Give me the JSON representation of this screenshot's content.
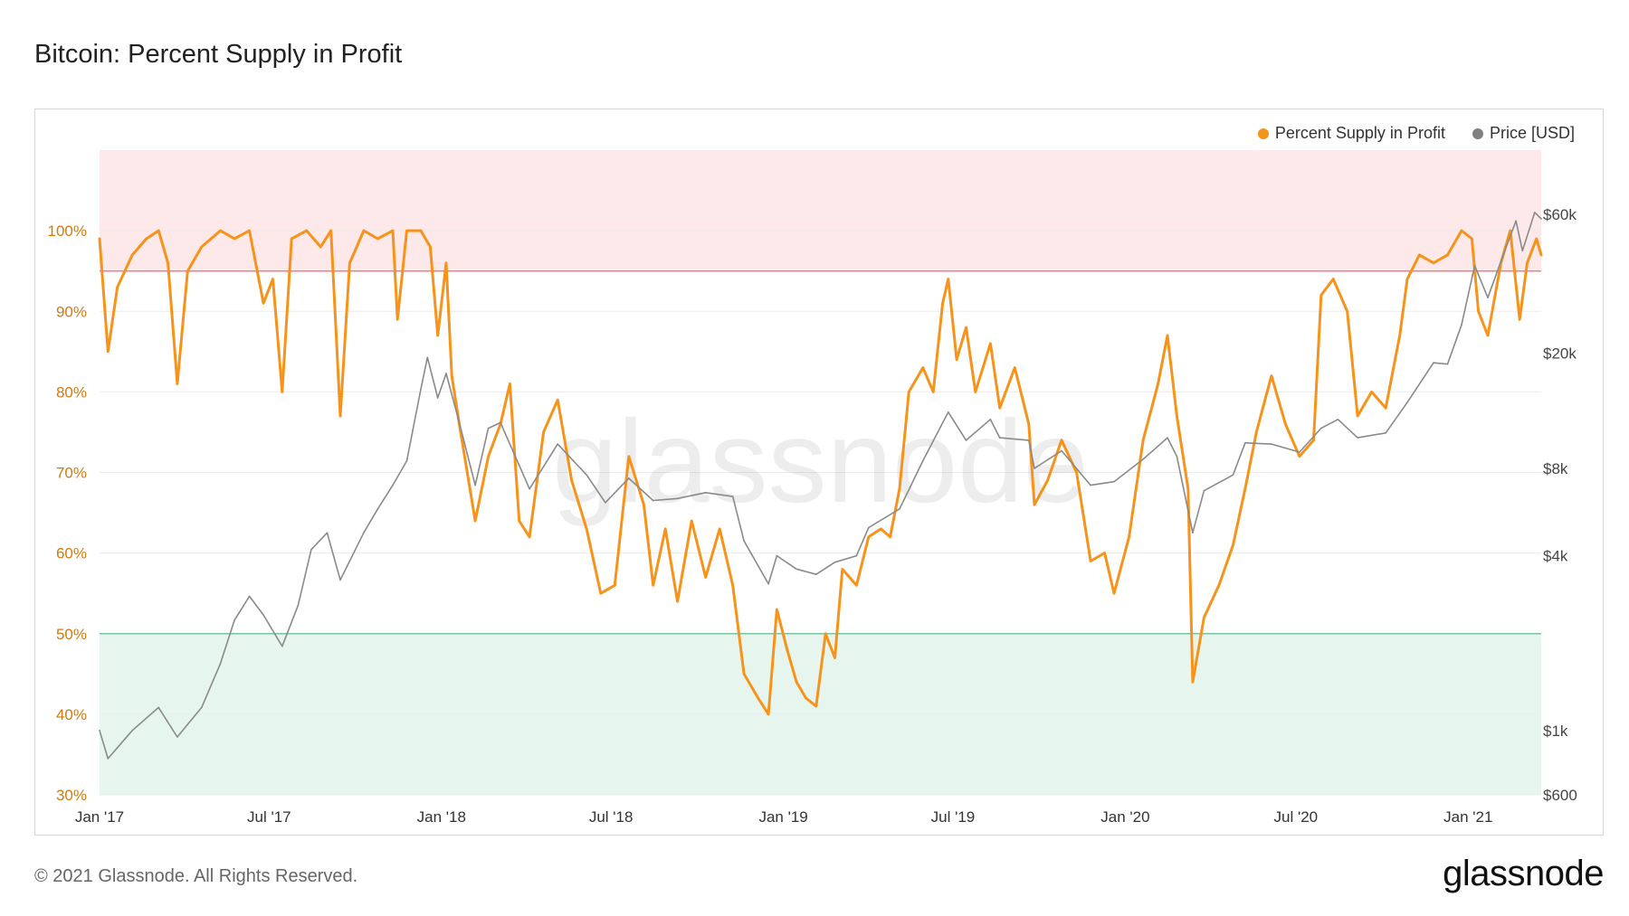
{
  "title": "Bitcoin: Percent Supply in Profit",
  "footer": "© 2021 Glassnode. All Rights Reserved.",
  "brand": "glassnode",
  "watermark": "glassnode",
  "legend": [
    {
      "label": "Percent Supply in Profit",
      "color": "#f7931a"
    },
    {
      "label": "Price [USD]",
      "color": "#808080"
    }
  ],
  "colors": {
    "profit_line": "#f7931a",
    "price_line": "#8a8a8a",
    "upper_band": "#fde8ea",
    "upper_line": "#f08080",
    "lower_band": "#e6f6ee",
    "lower_line": "#7cc4a0",
    "left_axis_text": "#d07a10"
  },
  "chart_data": {
    "type": "line",
    "title": "Bitcoin: Percent Supply in Profit",
    "x_ticks": [
      "Jan '17",
      "Jul '17",
      "Jan '18",
      "Jul '18",
      "Jan '19",
      "Jul '19",
      "Jan '20",
      "Jul '20",
      "Jan '21"
    ],
    "x_range": [
      "2017-01-01",
      "2021-03-20"
    ],
    "y_left": {
      "ticks": [
        "30%",
        "40%",
        "50%",
        "60%",
        "70%",
        "80%",
        "90%",
        "100%"
      ],
      "range": [
        30,
        110
      ]
    },
    "y_right": {
      "scale": "log",
      "ticks": [
        "$600",
        "$1k",
        "$4k",
        "$8k",
        "$20k",
        "$60k"
      ],
      "range": [
        600,
        100000
      ]
    },
    "bands": [
      {
        "from": 95,
        "to": 110,
        "color": "#fde8ea"
      },
      {
        "from": 30,
        "to": 50,
        "color": "#e6f6ee"
      }
    ],
    "reference_lines": [
      95,
      50
    ],
    "grid": true,
    "legend_position": "top-right",
    "series": [
      {
        "name": "Percent Supply in Profit",
        "axis": "left",
        "color": "#f7931a",
        "points": [
          [
            "2017-01-01",
            99
          ],
          [
            "2017-01-10",
            85
          ],
          [
            "2017-01-20",
            93
          ],
          [
            "2017-02-05",
            97
          ],
          [
            "2017-02-20",
            99
          ],
          [
            "2017-03-05",
            100
          ],
          [
            "2017-03-15",
            96
          ],
          [
            "2017-03-25",
            81
          ],
          [
            "2017-04-05",
            95
          ],
          [
            "2017-04-20",
            98
          ],
          [
            "2017-05-10",
            100
          ],
          [
            "2017-05-25",
            99
          ],
          [
            "2017-06-10",
            100
          ],
          [
            "2017-06-25",
            91
          ],
          [
            "2017-07-05",
            94
          ],
          [
            "2017-07-15",
            80
          ],
          [
            "2017-07-25",
            99
          ],
          [
            "2017-08-10",
            100
          ],
          [
            "2017-08-25",
            98
          ],
          [
            "2017-09-05",
            100
          ],
          [
            "2017-09-15",
            77
          ],
          [
            "2017-09-25",
            96
          ],
          [
            "2017-10-10",
            100
          ],
          [
            "2017-10-25",
            99
          ],
          [
            "2017-11-10",
            100
          ],
          [
            "2017-11-15",
            89
          ],
          [
            "2017-11-25",
            100
          ],
          [
            "2017-12-10",
            100
          ],
          [
            "2017-12-20",
            98
          ],
          [
            "2017-12-28",
            87
          ],
          [
            "2018-01-06",
            96
          ],
          [
            "2018-01-12",
            82
          ],
          [
            "2018-01-20",
            76
          ],
          [
            "2018-02-06",
            64
          ],
          [
            "2018-02-20",
            72
          ],
          [
            "2018-03-05",
            76
          ],
          [
            "2018-03-15",
            81
          ],
          [
            "2018-03-25",
            64
          ],
          [
            "2018-04-05",
            62
          ],
          [
            "2018-04-20",
            75
          ],
          [
            "2018-05-05",
            79
          ],
          [
            "2018-05-20",
            69
          ],
          [
            "2018-06-05",
            63
          ],
          [
            "2018-06-20",
            55
          ],
          [
            "2018-07-05",
            56
          ],
          [
            "2018-07-20",
            72
          ],
          [
            "2018-08-05",
            66
          ],
          [
            "2018-08-15",
            56
          ],
          [
            "2018-08-28",
            63
          ],
          [
            "2018-09-10",
            54
          ],
          [
            "2018-09-25",
            64
          ],
          [
            "2018-10-10",
            57
          ],
          [
            "2018-10-25",
            63
          ],
          [
            "2018-11-08",
            56
          ],
          [
            "2018-11-20",
            45
          ],
          [
            "2018-12-05",
            42
          ],
          [
            "2018-12-16",
            40
          ],
          [
            "2018-12-25",
            53
          ],
          [
            "2019-01-05",
            48
          ],
          [
            "2019-01-15",
            44
          ],
          [
            "2019-01-25",
            42
          ],
          [
            "2019-02-05",
            41
          ],
          [
            "2019-02-15",
            50
          ],
          [
            "2019-02-25",
            47
          ],
          [
            "2019-03-05",
            58
          ],
          [
            "2019-03-20",
            56
          ],
          [
            "2019-04-02",
            62
          ],
          [
            "2019-04-15",
            63
          ],
          [
            "2019-04-25",
            62
          ],
          [
            "2019-05-05",
            68
          ],
          [
            "2019-05-15",
            80
          ],
          [
            "2019-05-30",
            83
          ],
          [
            "2019-06-10",
            80
          ],
          [
            "2019-06-20",
            91
          ],
          [
            "2019-06-26",
            94
          ],
          [
            "2019-07-05",
            84
          ],
          [
            "2019-07-15",
            88
          ],
          [
            "2019-07-25",
            80
          ],
          [
            "2019-08-10",
            86
          ],
          [
            "2019-08-20",
            78
          ],
          [
            "2019-09-05",
            83
          ],
          [
            "2019-09-20",
            76
          ],
          [
            "2019-09-26",
            66
          ],
          [
            "2019-10-10",
            69
          ],
          [
            "2019-10-25",
            74
          ],
          [
            "2019-11-10",
            70
          ],
          [
            "2019-11-25",
            59
          ],
          [
            "2019-12-10",
            60
          ],
          [
            "2019-12-20",
            55
          ],
          [
            "2020-01-05",
            62
          ],
          [
            "2020-01-20",
            74
          ],
          [
            "2020-02-05",
            81
          ],
          [
            "2020-02-15",
            87
          ],
          [
            "2020-02-25",
            77
          ],
          [
            "2020-03-08",
            68
          ],
          [
            "2020-03-13",
            44
          ],
          [
            "2020-03-25",
            52
          ],
          [
            "2020-04-10",
            56
          ],
          [
            "2020-04-25",
            61
          ],
          [
            "2020-05-08",
            68
          ],
          [
            "2020-05-20",
            75
          ],
          [
            "2020-06-05",
            82
          ],
          [
            "2020-06-20",
            76
          ],
          [
            "2020-07-05",
            72
          ],
          [
            "2020-07-20",
            74
          ],
          [
            "2020-07-28",
            92
          ],
          [
            "2020-08-10",
            94
          ],
          [
            "2020-08-25",
            90
          ],
          [
            "2020-09-05",
            77
          ],
          [
            "2020-09-20",
            80
          ],
          [
            "2020-10-05",
            78
          ],
          [
            "2020-10-20",
            87
          ],
          [
            "2020-10-28",
            94
          ],
          [
            "2020-11-10",
            97
          ],
          [
            "2020-11-25",
            96
          ],
          [
            "2020-12-10",
            97
          ],
          [
            "2020-12-25",
            100
          ],
          [
            "2021-01-05",
            99
          ],
          [
            "2021-01-12",
            90
          ],
          [
            "2021-01-22",
            87
          ],
          [
            "2021-02-05",
            96
          ],
          [
            "2021-02-15",
            100
          ],
          [
            "2021-02-25",
            89
          ],
          [
            "2021-03-05",
            96
          ],
          [
            "2021-03-15",
            99
          ],
          [
            "2021-03-20",
            97
          ]
        ]
      },
      {
        "name": "Price [USD]",
        "axis": "right",
        "color": "#8a8a8a",
        "points": [
          [
            "2017-01-01",
            1000
          ],
          [
            "2017-01-10",
            800
          ],
          [
            "2017-02-05",
            1000
          ],
          [
            "2017-03-05",
            1200
          ],
          [
            "2017-03-25",
            950
          ],
          [
            "2017-04-20",
            1200
          ],
          [
            "2017-05-10",
            1700
          ],
          [
            "2017-05-25",
            2400
          ],
          [
            "2017-06-10",
            2900
          ],
          [
            "2017-06-25",
            2500
          ],
          [
            "2017-07-15",
            1950
          ],
          [
            "2017-08-01",
            2700
          ],
          [
            "2017-08-15",
            4200
          ],
          [
            "2017-09-01",
            4800
          ],
          [
            "2017-09-15",
            3300
          ],
          [
            "2017-10-10",
            4800
          ],
          [
            "2017-10-25",
            5800
          ],
          [
            "2017-11-10",
            7000
          ],
          [
            "2017-11-25",
            8500
          ],
          [
            "2017-12-10",
            15000
          ],
          [
            "2017-12-17",
            19300
          ],
          [
            "2017-12-28",
            14000
          ],
          [
            "2018-01-06",
            17000
          ],
          [
            "2018-01-20",
            11500
          ],
          [
            "2018-02-06",
            7000
          ],
          [
            "2018-02-20",
            11000
          ],
          [
            "2018-03-05",
            11500
          ],
          [
            "2018-03-25",
            8200
          ],
          [
            "2018-04-05",
            6800
          ],
          [
            "2018-05-05",
            9700
          ],
          [
            "2018-06-05",
            7600
          ],
          [
            "2018-06-25",
            6100
          ],
          [
            "2018-07-20",
            7400
          ],
          [
            "2018-08-15",
            6200
          ],
          [
            "2018-09-10",
            6300
          ],
          [
            "2018-10-10",
            6600
          ],
          [
            "2018-11-08",
            6400
          ],
          [
            "2018-11-20",
            4500
          ],
          [
            "2018-12-16",
            3200
          ],
          [
            "2018-12-25",
            4000
          ],
          [
            "2019-01-15",
            3600
          ],
          [
            "2019-02-05",
            3450
          ],
          [
            "2019-02-25",
            3800
          ],
          [
            "2019-03-20",
            4000
          ],
          [
            "2019-04-02",
            5000
          ],
          [
            "2019-05-05",
            5800
          ],
          [
            "2019-05-30",
            8500
          ],
          [
            "2019-06-26",
            12500
          ],
          [
            "2019-07-15",
            10000
          ],
          [
            "2019-08-10",
            11800
          ],
          [
            "2019-08-20",
            10200
          ],
          [
            "2019-09-20",
            10000
          ],
          [
            "2019-09-26",
            8000
          ],
          [
            "2019-10-25",
            9200
          ],
          [
            "2019-11-25",
            7000
          ],
          [
            "2019-12-20",
            7200
          ],
          [
            "2020-01-20",
            8600
          ],
          [
            "2020-02-15",
            10200
          ],
          [
            "2020-02-25",
            8800
          ],
          [
            "2020-03-13",
            4800
          ],
          [
            "2020-03-25",
            6700
          ],
          [
            "2020-04-25",
            7600
          ],
          [
            "2020-05-08",
            9800
          ],
          [
            "2020-06-05",
            9700
          ],
          [
            "2020-07-05",
            9100
          ],
          [
            "2020-07-28",
            11000
          ],
          [
            "2020-08-15",
            11800
          ],
          [
            "2020-09-05",
            10200
          ],
          [
            "2020-10-05",
            10600
          ],
          [
            "2020-10-28",
            13500
          ],
          [
            "2020-11-25",
            18500
          ],
          [
            "2020-12-10",
            18300
          ],
          [
            "2020-12-25",
            25000
          ],
          [
            "2021-01-08",
            40000
          ],
          [
            "2021-01-22",
            31000
          ],
          [
            "2021-02-08",
            44000
          ],
          [
            "2021-02-21",
            57000
          ],
          [
            "2021-02-28",
            45000
          ],
          [
            "2021-03-13",
            61000
          ],
          [
            "2021-03-20",
            58000
          ]
        ]
      }
    ]
  }
}
